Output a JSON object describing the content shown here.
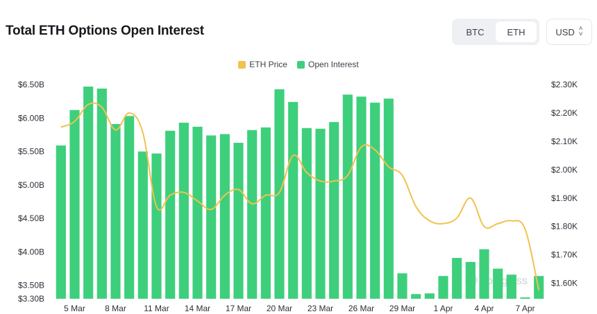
{
  "header": {
    "title": "Total ETH Options Open Interest",
    "toggle": [
      {
        "label": "BTC",
        "active": false
      },
      {
        "label": "ETH",
        "active": true
      }
    ],
    "currency": "USD"
  },
  "watermark": "coinglass",
  "colors": {
    "bars": "#3ecf7c",
    "price_line": "#f2c14e"
  },
  "chart_data": {
    "type": "bar",
    "legend": [
      "ETH Price",
      "Open Interest"
    ],
    "legend_placement": "top-center",
    "x_tick_labels": [
      "5 Mar",
      "8 Mar",
      "11 Mar",
      "14 Mar",
      "17 Mar",
      "20 Mar",
      "23 Mar",
      "26 Mar",
      "29 Mar",
      "1 Apr",
      "4 Apr",
      "7 Apr"
    ],
    "y_left": {
      "name": "Open Interest",
      "ticks": [
        "$6.50B",
        "$6.00B",
        "$5.50B",
        "$5.00B",
        "$4.50B",
        "$4.00B",
        "$3.50B",
        "$3.30B"
      ],
      "tick_values": [
        6.5,
        6.0,
        5.5,
        5.0,
        4.5,
        4.0,
        3.5,
        3.3
      ],
      "range": [
        3.3,
        6.5
      ]
    },
    "y_right": {
      "name": "ETH Price",
      "ticks": [
        "$2.30K",
        "$2.20K",
        "$2.10K",
        "$2.00K",
        "$1.90K",
        "$1.80K",
        "$1.70K",
        "$1.60K"
      ],
      "tick_values": [
        2.3,
        2.2,
        2.1,
        2.0,
        1.9,
        1.8,
        1.7,
        1.6
      ],
      "range": [
        1.555,
        2.3
      ]
    },
    "series": [
      {
        "name": "Open Interest",
        "type": "bar",
        "axis": "left",
        "values": [
          5.59,
          6.12,
          6.47,
          6.44,
          5.91,
          6.03,
          5.5,
          5.47,
          5.81,
          5.93,
          5.87,
          5.74,
          5.76,
          5.63,
          5.82,
          5.86,
          6.43,
          6.24,
          5.85,
          5.84,
          5.94,
          6.35,
          6.32,
          6.23,
          6.29,
          3.68,
          3.37,
          3.38,
          3.64,
          3.91,
          3.85,
          4.04,
          3.75,
          3.66,
          3.32,
          3.64
        ]
      },
      {
        "name": "ETH Price",
        "type": "line",
        "axis": "right",
        "values": [
          2.15,
          2.17,
          2.23,
          2.22,
          2.14,
          2.2,
          2.13,
          1.87,
          1.91,
          1.92,
          1.89,
          1.86,
          1.91,
          1.93,
          1.88,
          1.91,
          1.92,
          2.05,
          1.99,
          1.96,
          1.96,
          1.98,
          2.08,
          2.07,
          2.01,
          1.98,
          1.87,
          1.82,
          1.81,
          1.83,
          1.9,
          1.8,
          1.81,
          1.82,
          1.79,
          1.575
        ]
      }
    ]
  }
}
